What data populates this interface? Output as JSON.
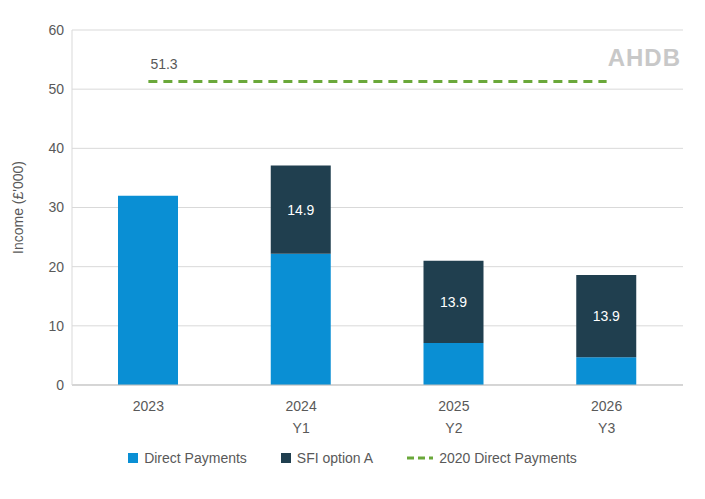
{
  "chart_data": {
    "type": "bar",
    "stacked": true,
    "grid": true,
    "logo": "AHDB",
    "y_label": "Income (£'000)",
    "categories": [
      "2023",
      "2024",
      "2025",
      "2026"
    ],
    "period_labels": [
      null,
      "Y1",
      "Y2",
      "Y3"
    ],
    "ylim": [
      0,
      60
    ],
    "yticks": [
      0,
      10,
      20,
      30,
      40,
      50,
      60
    ],
    "legend": "bottom",
    "series": [
      {
        "name": "Direct Payments",
        "color": "#0a8fd4",
        "values": [
          32,
          22.2,
          7.1,
          4.7
        ]
      },
      {
        "name": "SFI option A",
        "color": "#203f4f",
        "values": [
          null,
          14.9,
          13.9,
          13.9
        ],
        "data_labels": true
      }
    ],
    "reference_lines": [
      {
        "name": "2020 Direct Payments",
        "value": 51.3,
        "color": "#6aa83a",
        "line_style": "dashed",
        "data_labels": true
      }
    ]
  }
}
